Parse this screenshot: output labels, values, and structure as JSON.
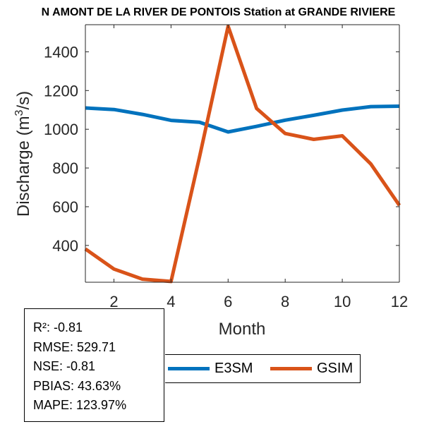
{
  "title": "N AMONT DE LA RIVER DE PONTOIS  Station at  GRANDE RIVIERE",
  "stats": {
    "r2": "R²: -0.81",
    "rmse": "RMSE: 529.71",
    "nse": "NSE: -0.81",
    "pbias": "PBIAS: 43.63%",
    "mape": "MAPE: 123.97%"
  },
  "legend": {
    "items": [
      {
        "label": "E3SM",
        "color": "#0072BD"
      },
      {
        "label": "GSIM",
        "color": "#D95319"
      }
    ]
  },
  "chart_data": {
    "type": "line",
    "title": "N AMONT DE LA RIVER DE PONTOIS  Station at  GRANDE RIVIERE",
    "xlabel": "Month",
    "ylabel_main": "Discharge (m",
    "ylabel_sup": "3",
    "ylabel_end": "/s)",
    "xlim": [
      1,
      12
    ],
    "ylim": [
      210,
      1540
    ],
    "xticks": [
      2,
      4,
      6,
      8,
      10,
      12
    ],
    "yticks": [
      400,
      600,
      800,
      1000,
      1200,
      1400
    ],
    "grid": false,
    "legend_position": "bottom",
    "x": [
      1,
      2,
      3,
      4,
      5,
      6,
      7,
      8,
      9,
      10,
      11,
      12
    ],
    "series": [
      {
        "name": "E3SM",
        "color": "#0072BD",
        "values": [
          1110,
          1102,
          1077,
          1046,
          1036,
          986,
          1015,
          1047,
          1072,
          1099,
          1117,
          1119
        ]
      },
      {
        "name": "GSIM",
        "color": "#D95319",
        "values": [
          382,
          278,
          226,
          214,
          858,
          1532,
          1107,
          978,
          948,
          966,
          821,
          607
        ]
      }
    ]
  }
}
